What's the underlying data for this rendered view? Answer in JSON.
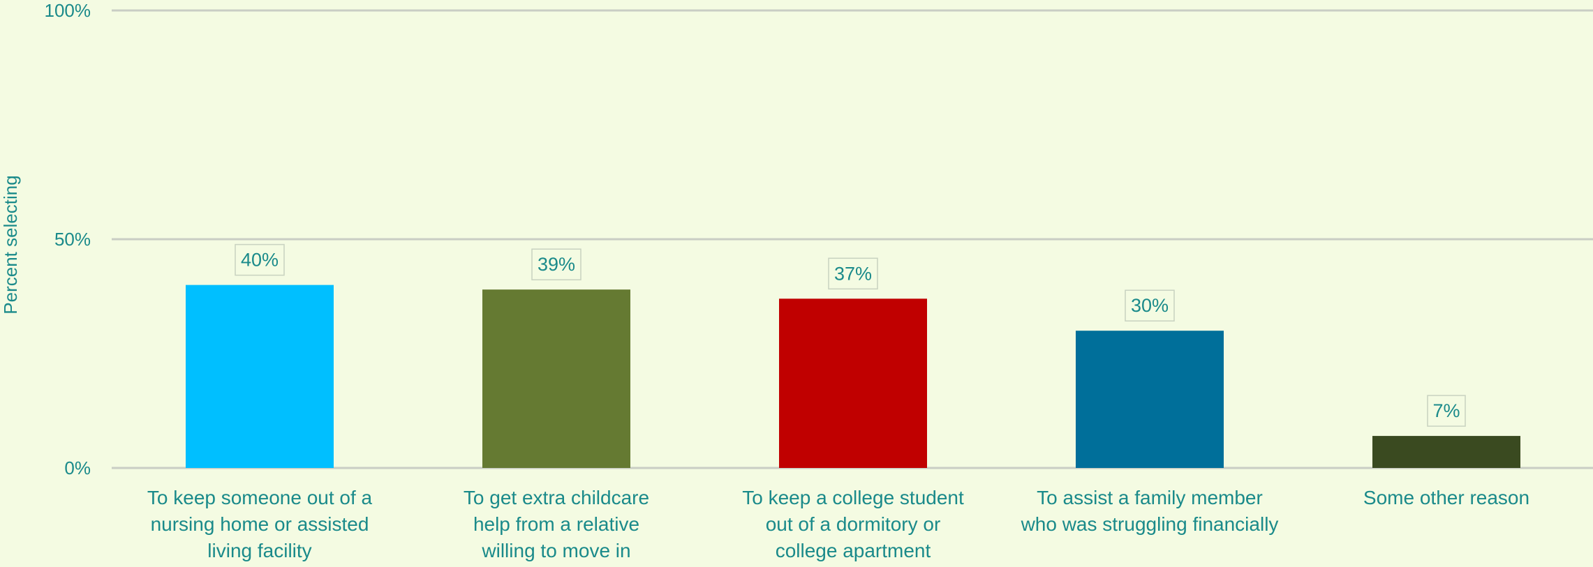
{
  "chart_data": {
    "type": "bar",
    "ylabel": "Percent selecting",
    "ylim": [
      0,
      100
    ],
    "yticks": [
      {
        "value": 0,
        "label": "0%"
      },
      {
        "value": 50,
        "label": "50%"
      },
      {
        "value": 100,
        "label": "100%"
      }
    ],
    "grid": true,
    "categories": [
      [
        "To keep someone out of a",
        "nursing home or assisted",
        "living facility"
      ],
      [
        "To get extra childcare",
        "help from a relative",
        "willing to move in"
      ],
      [
        "To keep a college student",
        "out of a dormitory or",
        "college apartment"
      ],
      [
        "To assist a family member",
        "who was struggling financially"
      ],
      [
        "Some other reason"
      ]
    ],
    "values": [
      40,
      39,
      37,
      30,
      7
    ],
    "data_labels": [
      "40%",
      "39%",
      "37%",
      "30%",
      "7%"
    ],
    "bar_colors": [
      "#00bfff",
      "#657a32",
      "#c00000",
      "#006f9a",
      "#3a4a20"
    ]
  },
  "colors": {
    "background": "#f4fbe2",
    "text": "#1a8a8a",
    "gridline": "#c9cdc4"
  }
}
